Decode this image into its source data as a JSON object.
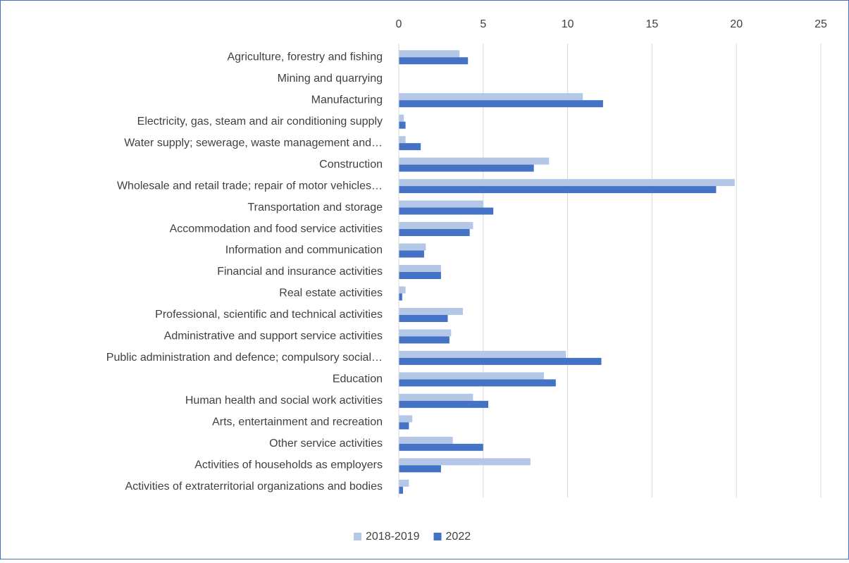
{
  "chart_data": {
    "type": "bar",
    "orientation": "horizontal",
    "categories": [
      "Agriculture, forestry and fishing",
      "Mining and quarrying",
      "Manufacturing",
      "Electricity, gas, steam and air conditioning supply",
      "Water supply; sewerage, waste management and…",
      "Construction",
      "Wholesale and retail trade; repair of motor vehicles…",
      "Transportation and storage",
      "Accommodation and food service activities",
      "Information and communication",
      "Financial and insurance activities",
      "Real estate activities",
      "Professional, scientific and technical activities",
      "Administrative and support service activities",
      "Public administration and defence; compulsory social…",
      "Education",
      "Human health and social work activities",
      "Arts, entertainment and recreation",
      "Other service activities",
      "Activities of households as employers",
      "Activities of extraterritorial organizations and bodies"
    ],
    "series": [
      {
        "name": "2018-2019",
        "color": "#b4c7e7",
        "values": [
          3.6,
          0,
          10.9,
          0.3,
          0.4,
          8.9,
          19.9,
          5.0,
          4.4,
          1.6,
          2.5,
          0.4,
          3.8,
          3.1,
          9.9,
          8.6,
          4.4,
          0.8,
          3.2,
          7.8,
          0.6
        ]
      },
      {
        "name": "2022",
        "color": "#4472c4",
        "values": [
          4.1,
          0,
          12.1,
          0.4,
          1.3,
          8.0,
          18.8,
          5.6,
          4.2,
          1.5,
          2.5,
          0.2,
          2.9,
          3.0,
          12.0,
          9.3,
          5.3,
          0.6,
          5.0,
          2.5,
          0.25
        ]
      }
    ],
    "xlim": [
      0,
      25
    ],
    "xticks": [
      0,
      5,
      10,
      15,
      20,
      25
    ],
    "grid": true,
    "legend": "bottom"
  }
}
